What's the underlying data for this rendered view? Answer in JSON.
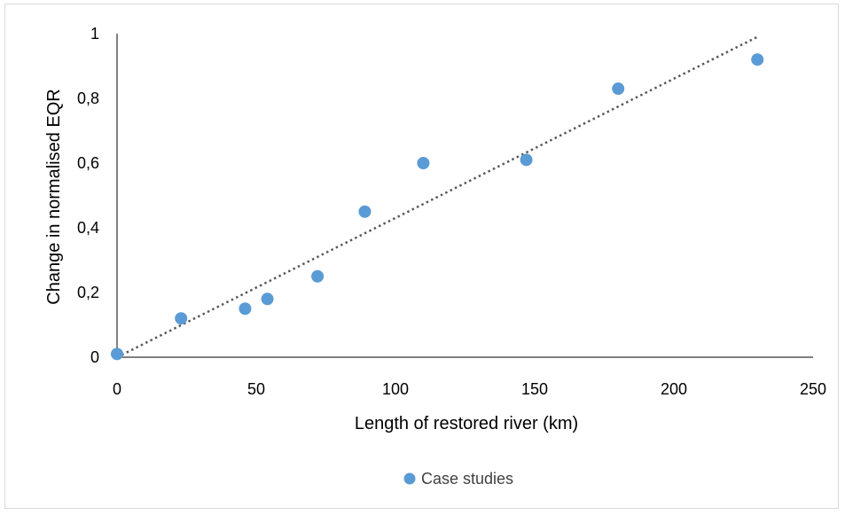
{
  "chart_data": {
    "type": "scatter",
    "xlabel": "Length of restored river (km)",
    "ylabel": "Change in normalised EQR",
    "xlim": [
      0,
      250
    ],
    "ylim": [
      0,
      1
    ],
    "x_ticks": [
      "0",
      "50",
      "100",
      "150",
      "200",
      "250"
    ],
    "y_ticks": [
      "0",
      "0,2",
      "0,4",
      "0,6",
      "0,8",
      "1"
    ],
    "grid": false,
    "legend_position": "bottom",
    "series": [
      {
        "name": "Case studies",
        "color": "#5b9bd5",
        "marker": "circle",
        "points": [
          {
            "x": 0,
            "y": 0.01
          },
          {
            "x": 23,
            "y": 0.12
          },
          {
            "x": 46,
            "y": 0.15
          },
          {
            "x": 54,
            "y": 0.18
          },
          {
            "x": 72,
            "y": 0.25
          },
          {
            "x": 89,
            "y": 0.45
          },
          {
            "x": 110,
            "y": 0.6
          },
          {
            "x": 147,
            "y": 0.61
          },
          {
            "x": 180,
            "y": 0.83
          },
          {
            "x": 230,
            "y": 0.92
          }
        ]
      }
    ],
    "trendline": {
      "type": "linear",
      "style": "dotted",
      "color": "#595959",
      "from": {
        "x": 0,
        "y": 0
      },
      "to": {
        "x": 230,
        "y": 0.99
      }
    }
  }
}
